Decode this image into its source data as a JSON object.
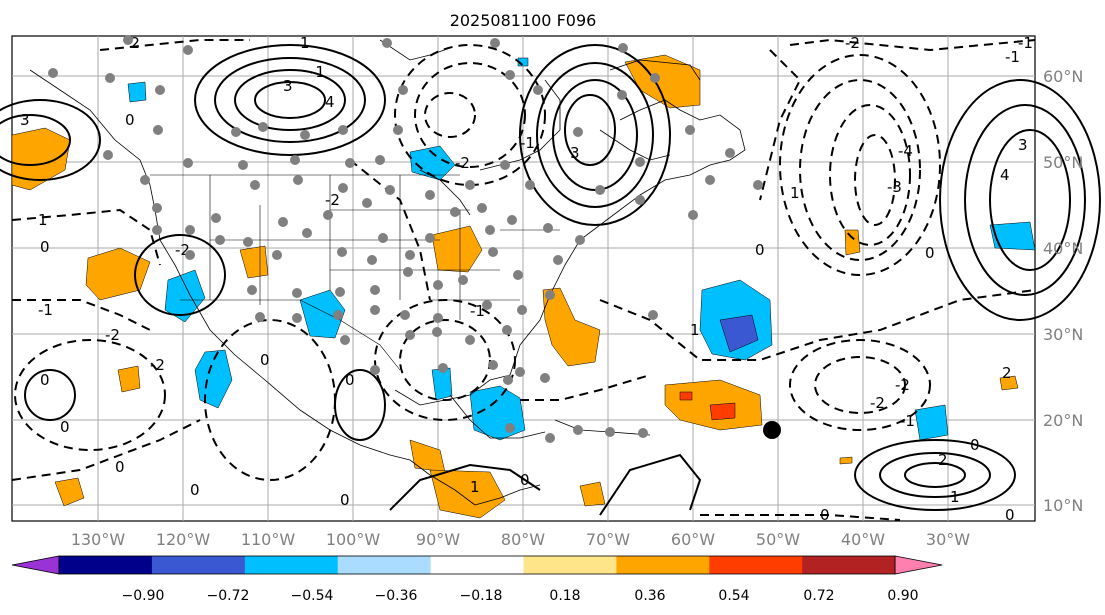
{
  "title": "2025081100 F096",
  "map": {
    "lon_labels": [
      "130°W",
      "120°W",
      "110°W",
      "100°W",
      "90°W",
      "80°W",
      "70°W",
      "60°W",
      "50°W",
      "40°W",
      "30°W"
    ],
    "lat_labels": [
      "60°N",
      "50°N",
      "40°N",
      "30°N",
      "20°N",
      "10°N"
    ],
    "contour_labels": [
      "-1",
      "0",
      "1",
      "2",
      "3",
      "4",
      "-2",
      "-3",
      "-4"
    ],
    "marker_label": "black dot marker"
  },
  "colorbar": {
    "ticks": [
      "−0.90",
      "−0.72",
      "−0.54",
      "−0.36",
      "−0.18",
      "0.18",
      "0.36",
      "0.54",
      "0.72",
      "0.90"
    ],
    "colors": [
      "#9a33d6",
      "#00008b",
      "#3a58d1",
      "#00bfff",
      "#aadcff",
      "#ffffff",
      "#ffe58a",
      "#ffa500",
      "#ff3d00",
      "#b22222",
      "#ff7fae"
    ]
  }
}
